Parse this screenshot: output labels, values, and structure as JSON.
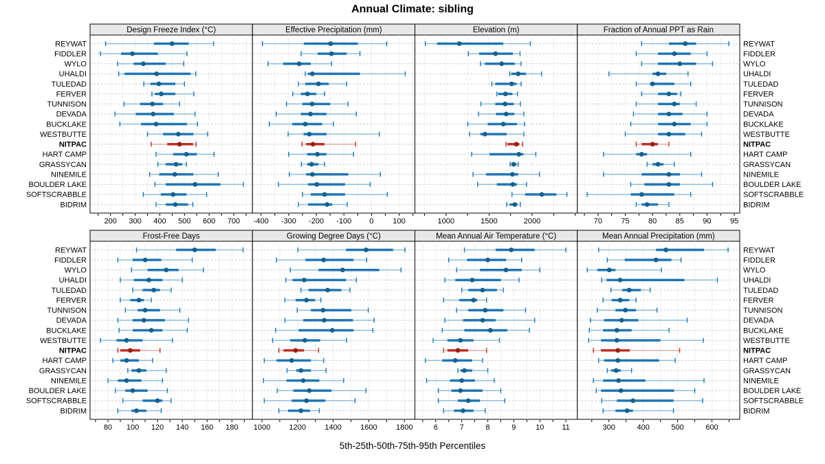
{
  "title": "Annual Climate: sibling",
  "caption": "5th-25th-50th-75th-95th Percentiles",
  "highlight_site": "NITPAC",
  "colors": {
    "normal": {
      "dot": "#15608f",
      "bar": "#2076b4",
      "whisker": "#8fbcdb"
    },
    "highlight": {
      "dot": "#9c1d13",
      "bar": "#bf3026",
      "whisker": "#e4aaa3"
    },
    "grid": "#c9c9c9",
    "strip_bg": "#e8e8e8",
    "panel_border": "#000000",
    "text": "#000000"
  },
  "chart_data": {
    "type": "dotplot-percentile-trellis",
    "percentiles": [
      5,
      25,
      50,
      75,
      95
    ],
    "legend": "whisker = 5th-95th, thick bar = 25th-75th, dot = 50th percentile",
    "sites": [
      "REYWAT",
      "FIDDLER",
      "WYLO",
      "UHALDI",
      "TULEDAD",
      "FERVER",
      "TUNNISON",
      "DEVADA",
      "BUCKLAKE",
      "WESTBUTTE",
      "NITPAC",
      "HART CAMP",
      "GRASSYCAN",
      "NINEMILE",
      "BOULDER LAKE",
      "SOFTSCRABBLE",
      "BIDRIM"
    ],
    "panels": [
      {
        "title": "Design Freeze Index (°C)",
        "xlim": [
          117,
          776
        ],
        "ticks": [
          200,
          300,
          400,
          500,
          600,
          700
        ],
        "values": [
          [
            180,
            376,
            450,
            517,
            618
          ],
          [
            159,
            243,
            289,
            392,
            510
          ],
          [
            229,
            294,
            333,
            424,
            497
          ],
          [
            233,
            257,
            387,
            525,
            546
          ],
          [
            335,
            362,
            396,
            463,
            500
          ],
          [
            368,
            380,
            406,
            463,
            538
          ],
          [
            255,
            320,
            370,
            413,
            480
          ],
          [
            218,
            303,
            373,
            457,
            543
          ],
          [
            238,
            324,
            385,
            510,
            553
          ],
          [
            350,
            413,
            475,
            536,
            594
          ],
          [
            365,
            430,
            480,
            535,
            547
          ],
          [
            385,
            454,
            508,
            550,
            620
          ],
          [
            392,
            424,
            466,
            491,
            508
          ],
          [
            359,
            398,
            461,
            536,
            637
          ],
          [
            380,
            424,
            543,
            646,
            739
          ],
          [
            333,
            404,
            454,
            508,
            590
          ],
          [
            385,
            424,
            463,
            515,
            534
          ]
        ]
      },
      {
        "title": "Effective Precipitation (mm)",
        "xlim": [
          -431,
          157
        ],
        "ticks": [
          -400,
          -300,
          -200,
          -100,
          0,
          100
        ],
        "values": [
          [
            -395,
            -245,
            -148,
            -50,
            55
          ],
          [
            -255,
            -195,
            -145,
            -90,
            -42
          ],
          [
            -375,
            -320,
            -262,
            -220,
            -145
          ],
          [
            -240,
            -231,
            -214,
            -42,
            122
          ],
          [
            -265,
            -240,
            -192,
            -155,
            -90
          ],
          [
            -285,
            -256,
            -232,
            -200,
            -170
          ],
          [
            -308,
            -250,
            -215,
            -150,
            -85
          ],
          [
            -345,
            -256,
            -221,
            -163,
            -55
          ],
          [
            -370,
            -287,
            -240,
            -179,
            -138
          ],
          [
            -302,
            -246,
            -225,
            -163,
            28
          ],
          [
            -252,
            -237,
            -212,
            -170,
            -58
          ],
          [
            -300,
            -233,
            -196,
            -163,
            -65
          ],
          [
            -254,
            -233,
            -217,
            -192,
            -170
          ],
          [
            -297,
            -237,
            -214,
            -84,
            32
          ],
          [
            -337,
            -230,
            -198,
            -96,
            -5
          ],
          [
            -250,
            -220,
            -170,
            -96,
            57
          ],
          [
            -265,
            -230,
            -161,
            -142,
            -88
          ]
        ]
      },
      {
        "title": "Elevation (m)",
        "xlim": [
          639,
          2525
        ],
        "ticks": [
          1000,
          1500,
          2000
        ],
        "values": [
          [
            760,
            895,
            1155,
            1665,
            1980
          ],
          [
            1260,
            1385,
            1575,
            1777,
            1860
          ],
          [
            1400,
            1452,
            1646,
            1798,
            1872
          ],
          [
            1740,
            1758,
            1838,
            1930,
            2110
          ],
          [
            1532,
            1572,
            1763,
            1819,
            1872
          ],
          [
            1590,
            1606,
            1691,
            1771,
            1830
          ],
          [
            1405,
            1572,
            1686,
            1785,
            1864
          ],
          [
            1377,
            1580,
            1699,
            1793,
            1904
          ],
          [
            1253,
            1484,
            1665,
            1824,
            1912
          ],
          [
            1274,
            1399,
            1452,
            1705,
            1904
          ],
          [
            1697,
            1713,
            1817,
            1851,
            1891
          ],
          [
            1298,
            1505,
            1846,
            1899,
            2043
          ],
          [
            1745,
            1758,
            1785,
            1819,
            1838
          ],
          [
            1314,
            1466,
            1771,
            1838,
            2085
          ],
          [
            1367,
            1590,
            1777,
            1824,
            1936
          ],
          [
            1766,
            1918,
            2112,
            2282,
            2404
          ],
          [
            1705,
            1739,
            1798,
            1830,
            1864
          ]
        ]
      },
      {
        "title": "Fraction of Annual PPT as Rain",
        "xlim": [
          66.2,
          96
        ],
        "ticks": [
          70,
          75,
          80,
          85,
          90,
          95
        ],
        "values": [
          [
            78,
            83,
            86,
            88,
            94
          ],
          [
            77,
            81,
            84,
            87,
            90
          ],
          [
            78,
            81,
            85,
            88,
            91
          ],
          [
            72,
            80,
            81,
            82.5,
            86.5
          ],
          [
            77,
            79.5,
            80,
            84,
            87
          ],
          [
            78,
            81,
            83,
            84.5,
            85.2
          ],
          [
            77,
            81,
            84,
            85,
            88
          ],
          [
            76.5,
            81,
            83,
            85.5,
            90
          ],
          [
            76,
            81,
            84,
            87,
            90
          ],
          [
            75,
            81,
            83,
            86,
            89
          ],
          [
            77,
            78,
            80,
            81,
            83
          ],
          [
            71,
            77,
            78,
            79,
            87
          ],
          [
            79,
            80,
            81,
            82,
            84
          ],
          [
            71,
            78,
            83,
            85,
            89
          ],
          [
            76,
            78.5,
            83,
            85,
            91
          ],
          [
            68,
            76,
            78,
            84,
            87
          ],
          [
            77,
            78,
            79,
            81,
            83
          ]
        ]
      },
      {
        "title": "Frost-Free Days",
        "xlim": [
          65.6,
          196.6
        ],
        "ticks": [
          80,
          100,
          120,
          140,
          160,
          180
        ],
        "values": [
          [
            103,
            135,
            150,
            167,
            189
          ],
          [
            88,
            100,
            110,
            123,
            148
          ],
          [
            99,
            112,
            127,
            137,
            157
          ],
          [
            90,
            101,
            113,
            124,
            140
          ],
          [
            100,
            108,
            117,
            122,
            131
          ],
          [
            90,
            98,
            105,
            109,
            115
          ],
          [
            94,
            104,
            110,
            122,
            138
          ],
          [
            88,
            100,
            109,
            126,
            145
          ],
          [
            89,
            100,
            115,
            124,
            144
          ],
          [
            74,
            87,
            95,
            108,
            132
          ],
          [
            88,
            90,
            98,
            106,
            122
          ],
          [
            84,
            90,
            95,
            105,
            116
          ],
          [
            96,
            99,
            105,
            111,
            127
          ],
          [
            80,
            88,
            95,
            107,
            124
          ],
          [
            86,
            94,
            100,
            112,
            128
          ],
          [
            92,
            108,
            120,
            124,
            131
          ],
          [
            88,
            99,
            103,
            111,
            123
          ]
        ]
      },
      {
        "title": "Growing Degree Days (°C)",
        "xlim": [
          947,
          1859
        ],
        "ticks": [
          1000,
          1200,
          1400,
          1600,
          1800
        ],
        "values": [
          [
            1202,
            1472,
            1585,
            1736,
            1803
          ],
          [
            1082,
            1244,
            1347,
            1514,
            1588
          ],
          [
            1159,
            1318,
            1453,
            1659,
            1781
          ],
          [
            1134,
            1172,
            1237,
            1472,
            1530
          ],
          [
            1219,
            1262,
            1369,
            1446,
            1494
          ],
          [
            1129,
            1189,
            1250,
            1298,
            1331
          ],
          [
            1198,
            1275,
            1343,
            1502,
            1597
          ],
          [
            1129,
            1232,
            1350,
            1511,
            1630
          ],
          [
            1077,
            1206,
            1395,
            1514,
            1623
          ],
          [
            1060,
            1159,
            1241,
            1327,
            1476
          ],
          [
            1095,
            1121,
            1189,
            1237,
            1318
          ],
          [
            1013,
            1082,
            1167,
            1275,
            1347
          ],
          [
            1141,
            1193,
            1219,
            1275,
            1360
          ],
          [
            1009,
            1138,
            1232,
            1322,
            1459
          ],
          [
            1086,
            1176,
            1266,
            1391,
            1584
          ],
          [
            1013,
            1167,
            1250,
            1356,
            1523
          ],
          [
            1095,
            1147,
            1219,
            1270,
            1322
          ]
        ]
      },
      {
        "title": "Mean Annual Air Temperature (°C)",
        "xlim": [
          5.2,
          11.44
        ],
        "ticks": [
          6,
          7,
          8,
          9,
          10,
          11
        ],
        "values": [
          [
            7.1,
            8.3,
            8.9,
            9.8,
            11.0
          ],
          [
            6.5,
            7.2,
            8.0,
            8.7,
            9.3
          ],
          [
            6.8,
            7.7,
            8.7,
            9.3,
            10.0
          ],
          [
            6.35,
            6.75,
            7.4,
            8.5,
            9.2
          ],
          [
            7.0,
            7.25,
            7.8,
            8.35,
            8.6
          ],
          [
            6.3,
            6.9,
            7.45,
            7.6,
            7.95
          ],
          [
            6.8,
            7.25,
            7.9,
            8.6,
            9.45
          ],
          [
            6.35,
            7.05,
            7.8,
            8.3,
            9.8
          ],
          [
            6.25,
            7.1,
            8.1,
            8.75,
            9.6
          ],
          [
            5.9,
            6.45,
            6.95,
            7.45,
            8.45
          ],
          [
            6.3,
            6.45,
            6.85,
            7.25,
            7.95
          ],
          [
            5.6,
            6.25,
            6.75,
            7.4,
            7.8
          ],
          [
            6.85,
            6.95,
            7.1,
            7.4,
            8.0
          ],
          [
            5.65,
            6.55,
            7.0,
            7.5,
            8.25
          ],
          [
            6.1,
            6.6,
            6.95,
            7.8,
            8.5
          ],
          [
            6.1,
            6.85,
            7.25,
            7.7,
            8.65
          ],
          [
            6.3,
            6.7,
            7.05,
            7.45,
            7.9
          ]
        ]
      },
      {
        "title": "Mean Annual Precipitation (mm)",
        "xlim": [
          208,
          681
        ],
        "ticks": [
          300,
          400,
          500,
          600
        ],
        "values": [
          [
            270,
            437,
            466,
            577,
            647
          ],
          [
            295,
            346,
            437,
            482,
            510
          ],
          [
            237,
            266,
            301,
            319,
            453
          ],
          [
            279,
            293,
            333,
            520,
            616
          ],
          [
            306,
            339,
            359,
            393,
            420
          ],
          [
            283,
            308,
            333,
            359,
            379
          ],
          [
            266,
            319,
            348,
            379,
            440
          ],
          [
            246,
            286,
            337,
            386,
            528
          ],
          [
            243,
            283,
            323,
            366,
            475
          ],
          [
            241,
            277,
            323,
            450,
            575
          ],
          [
            255,
            277,
            326,
            361,
            506
          ],
          [
            270,
            286,
            326,
            446,
            493
          ],
          [
            295,
            306,
            321,
            335,
            366
          ],
          [
            255,
            283,
            328,
            406,
            577
          ],
          [
            263,
            277,
            335,
            490,
            550
          ],
          [
            279,
            323,
            370,
            488,
            573
          ],
          [
            283,
            319,
            353,
            370,
            488
          ]
        ]
      }
    ]
  }
}
